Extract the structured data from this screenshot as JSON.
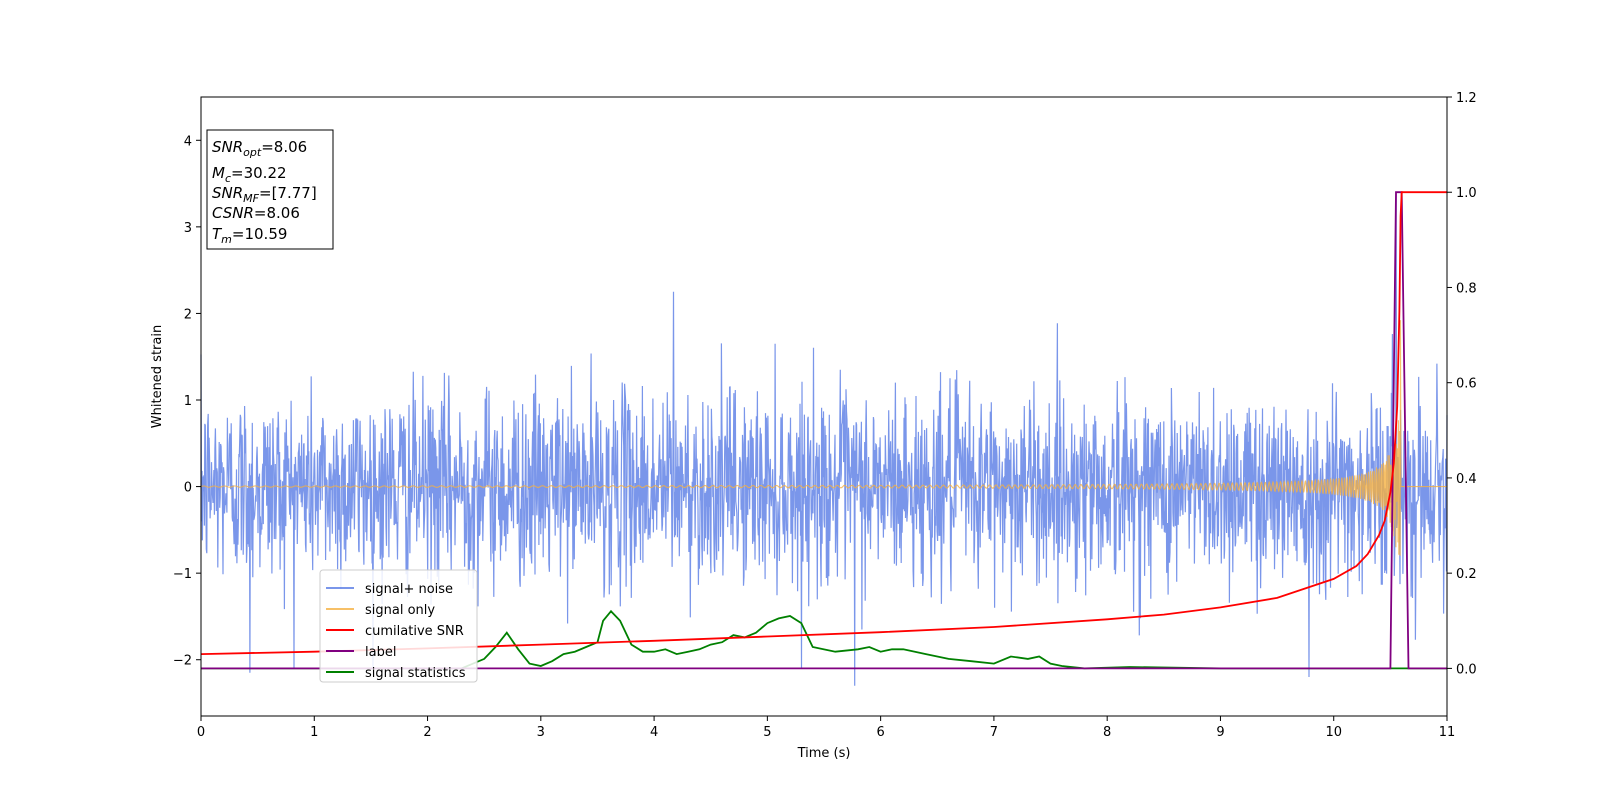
{
  "chart_data": {
    "type": "line",
    "xlabel": "Time (s)",
    "ylabel": "Whitened strain",
    "xlim": [
      0,
      11
    ],
    "ylim": [
      -2.65,
      4.5
    ],
    "y2lim": [
      -0.1,
      1.2
    ],
    "xticks": [
      "0",
      "1",
      "2",
      "3",
      "4",
      "5",
      "6",
      "7",
      "8",
      "9",
      "10",
      "11"
    ],
    "yticks": [
      "4",
      "3",
      "2",
      "1",
      "0",
      "−1",
      "−2"
    ],
    "y2ticks": [
      "1.2",
      "1.0",
      "0.8",
      "0.6",
      "0.4",
      "0.2",
      "0.0"
    ],
    "grid": false,
    "legend_position": "lower-left",
    "annotation": {
      "snr_opt": {
        "symbol": "SNR",
        "sub": "opt",
        "value": "=8.06"
      },
      "mc": {
        "symbol": "M",
        "sub": "c",
        "value": "=30.22"
      },
      "snr_mf": {
        "symbol": "SNR",
        "sub": "MF",
        "value": "=[7.77]"
      },
      "csnr": {
        "symbol": "CSNR",
        "value": "=8.06"
      },
      "tm": {
        "symbol": "T",
        "sub": "m",
        "value": "=10.59"
      }
    },
    "series": [
      {
        "name": "signal+ noise",
        "color": "#4169e1",
        "axis": "left",
        "description_range": [
          -2.3,
          2.3
        ],
        "notable_points": [
          [
            0.43,
            -2.15
          ],
          [
            4.17,
            2.25
          ],
          [
            5.77,
            -2.3
          ],
          [
            9.78,
            -2.2
          ],
          [
            10.55,
            3.38
          ]
        ]
      },
      {
        "name": "signal only",
        "color": "#f5b041",
        "axis": "left",
        "chirp_end": 10.59,
        "chirp_peak_amplitude": 2.0
      },
      {
        "name": "cumilative SNR",
        "color": "#ff0000",
        "axis": "right",
        "x": [
          0,
          1,
          2,
          3,
          4,
          5,
          6,
          7,
          8,
          8.5,
          9,
          9.5,
          10,
          10.2,
          10.3,
          10.4,
          10.45,
          10.5,
          10.53,
          10.56,
          10.58,
          10.59,
          10.6,
          11
        ],
        "y": [
          0.03,
          0.035,
          0.042,
          0.05,
          0.058,
          0.067,
          0.076,
          0.087,
          0.103,
          0.113,
          0.128,
          0.148,
          0.188,
          0.215,
          0.24,
          0.28,
          0.31,
          0.37,
          0.43,
          0.55,
          0.75,
          0.95,
          1.0,
          1.0
        ]
      },
      {
        "name": "label",
        "color": "#800080",
        "axis": "right",
        "x": [
          0,
          10.5,
          10.55,
          10.6,
          10.66,
          11
        ],
        "y": [
          0,
          0,
          1.0,
          1.0,
          0,
          0
        ]
      },
      {
        "name": "signal statistics",
        "color": "#008000",
        "axis": "right",
        "x": [
          0,
          2.0,
          2.3,
          2.5,
          2.6,
          2.7,
          2.8,
          2.9,
          3.0,
          3.1,
          3.2,
          3.3,
          3.4,
          3.5,
          3.55,
          3.62,
          3.7,
          3.8,
          3.9,
          4.0,
          4.1,
          4.2,
          4.3,
          4.4,
          4.5,
          4.6,
          4.7,
          4.8,
          4.9,
          5.0,
          5.1,
          5.2,
          5.3,
          5.4,
          5.6,
          5.8,
          5.9,
          6.0,
          6.1,
          6.2,
          6.4,
          6.6,
          6.8,
          7.0,
          7.15,
          7.3,
          7.4,
          7.5,
          7.6,
          7.8,
          8.2,
          9.0,
          10.0,
          11.0
        ],
        "y": [
          0,
          0,
          0.0,
          0.02,
          0.045,
          0.075,
          0.04,
          0.01,
          0.005,
          0.015,
          0.03,
          0.035,
          0.045,
          0.055,
          0.1,
          0.12,
          0.1,
          0.05,
          0.035,
          0.035,
          0.04,
          0.03,
          0.035,
          0.04,
          0.05,
          0.055,
          0.07,
          0.065,
          0.075,
          0.095,
          0.105,
          0.11,
          0.095,
          0.045,
          0.035,
          0.04,
          0.045,
          0.035,
          0.04,
          0.04,
          0.03,
          0.02,
          0.015,
          0.01,
          0.025,
          0.02,
          0.025,
          0.01,
          0.005,
          0.0,
          0.003,
          0.0,
          0.0,
          0.0
        ]
      }
    ]
  }
}
